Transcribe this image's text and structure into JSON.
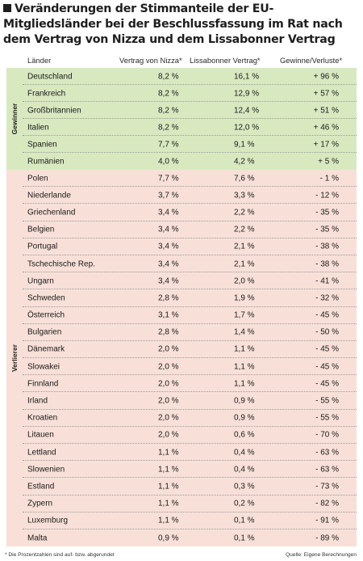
{
  "title": "Veränderungen der Stimmanteile der EU-Mitgliedsländer bei der Beschlussfassung im Rat nach dem Vertrag von Nizza und dem Lissabonner Vertrag",
  "columns": {
    "land": "Länder",
    "nizza": "Vertrag von Nizza*",
    "lissabon": "Lissabonner Vertrag*",
    "change": "Gewinne/Verluste*"
  },
  "groups": {
    "winners": "Gewinner",
    "losers": "Verlierer"
  },
  "winners": [
    {
      "land": "Deutschland",
      "nizza": "8,2 %",
      "lissabon": "16,1 %",
      "change": "+ 96 %"
    },
    {
      "land": "Frankreich",
      "nizza": "8,2 %",
      "lissabon": "12,9 %",
      "change": "+ 57 %"
    },
    {
      "land": "Großbritannien",
      "nizza": "8,2 %",
      "lissabon": "12,4 %",
      "change": "+ 51 %"
    },
    {
      "land": "Italien",
      "nizza": "8,2 %",
      "lissabon": "12,0 %",
      "change": "+ 46 %"
    },
    {
      "land": "Spanien",
      "nizza": "7,7 %",
      "lissabon": "9,1 %",
      "change": "+ 17 %"
    },
    {
      "land": "Rumänien",
      "nizza": "4,0 %",
      "lissabon": "4,2 %",
      "change": "+ 5 %"
    }
  ],
  "losers": [
    {
      "land": "Polen",
      "nizza": "7,7 %",
      "lissabon": "7,6 %",
      "change": "- 1 %"
    },
    {
      "land": "Niederlande",
      "nizza": "3,7 %",
      "lissabon": "3,3 %",
      "change": "- 12 %"
    },
    {
      "land": "Griechenland",
      "nizza": "3,4 %",
      "lissabon": "2,2 %",
      "change": "- 35 %"
    },
    {
      "land": "Belgien",
      "nizza": "3,4 %",
      "lissabon": "2,2 %",
      "change": "- 35 %"
    },
    {
      "land": "Portugal",
      "nizza": "3,4 %",
      "lissabon": "2,1 %",
      "change": "- 38 %"
    },
    {
      "land": "Tschechische Rep.",
      "nizza": "3,4 %",
      "lissabon": "2,1 %",
      "change": "- 38 %"
    },
    {
      "land": "Ungarn",
      "nizza": "3,4 %",
      "lissabon": "2,0 %",
      "change": "- 41 %"
    },
    {
      "land": "Schweden",
      "nizza": "2,8 %",
      "lissabon": "1,9 %",
      "change": "- 32 %"
    },
    {
      "land": "Österreich",
      "nizza": "3,1 %",
      "lissabon": "1,7 %",
      "change": "- 45 %"
    },
    {
      "land": "Bulgarien",
      "nizza": "2,8 %",
      "lissabon": "1,4 %",
      "change": "- 50 %"
    },
    {
      "land": "Dänemark",
      "nizza": "2,0 %",
      "lissabon": "1,1 %",
      "change": "- 45 %"
    },
    {
      "land": "Slowakei",
      "nizza": "2,0 %",
      "lissabon": "1,1 %",
      "change": "- 45 %"
    },
    {
      "land": "Finnland",
      "nizza": "2,0 %",
      "lissabon": "1,1 %",
      "change": "- 45 %"
    },
    {
      "land": "Irland",
      "nizza": "2,0 %",
      "lissabon": "0,9 %",
      "change": "- 55 %"
    },
    {
      "land": "Kroatien",
      "nizza": "2,0 %",
      "lissabon": "0,9 %",
      "change": "- 55 %"
    },
    {
      "land": "Litauen",
      "nizza": "2,0 %",
      "lissabon": "0,6 %",
      "change": "- 70 %"
    },
    {
      "land": "Lettland",
      "nizza": "1,1 %",
      "lissabon": "0,4 %",
      "change": "- 63 %"
    },
    {
      "land": "Slowenien",
      "nizza": "1,1 %",
      "lissabon": "0,4 %",
      "change": "- 63 %"
    },
    {
      "land": "Estland",
      "nizza": "1,1 %",
      "lissabon": "0,3 %",
      "change": "- 73 %"
    },
    {
      "land": "Zypern",
      "nizza": "1,1 %",
      "lissabon": "0,2 %",
      "change": "- 82 %"
    },
    {
      "land": "Luxemburg",
      "nizza": "1,1 %",
      "lissabon": "0,1 %",
      "change": "- 91 %"
    },
    {
      "land": "Malta",
      "nizza": "0,9 %",
      "lissabon": "0,1 %",
      "change": "- 89 %"
    }
  ],
  "footnote": "* Die Prozentzahlen sind auf- bzw. abgerundet",
  "source": "Quelle: Eigene Berechnungen"
}
